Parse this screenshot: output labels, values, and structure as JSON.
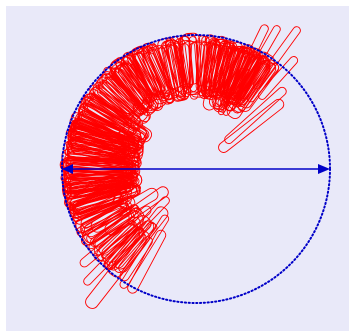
{
  "colors": {
    "background": "#e9e9f9",
    "shapes": "#ff0000",
    "circle": "#0000c8",
    "arrow": "#0000c8"
  }
}
